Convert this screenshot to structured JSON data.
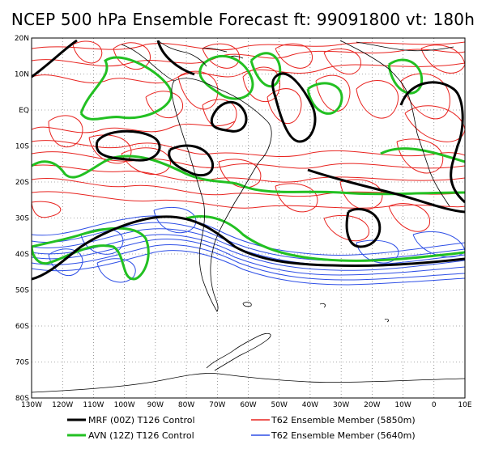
{
  "title": "NCEP 500 hPa Ensemble Forecast  ft: 99091800 vt: 180h",
  "map": {
    "lon_range": [
      -130,
      10
    ],
    "lat_range": [
      -80,
      20
    ],
    "lat_ticks": [
      "20N",
      "10N",
      "EQ",
      "10S",
      "20S",
      "30S",
      "40S",
      "50S",
      "60S",
      "70S",
      "80S"
    ],
    "lon_ticks": [
      "130W",
      "120W",
      "110W",
      "100W",
      "90W",
      "80W",
      "70W",
      "60W",
      "50W",
      "40W",
      "30W",
      "20W",
      "10W",
      "0",
      "10E"
    ],
    "grid": "dotted"
  },
  "legend": [
    {
      "label": "MRF (00Z) T126 Control",
      "color": "#000000",
      "width": 3
    },
    {
      "label": "T62 Ensemble Member (5850m)",
      "color": "#e8231f",
      "width": 1
    },
    {
      "label": "AVN (12Z) T126 Control",
      "color": "#22c022",
      "width": 3
    },
    {
      "label": "T62 Ensemble Member (5640m)",
      "color": "#2e4fe6",
      "width": 1
    }
  ]
}
